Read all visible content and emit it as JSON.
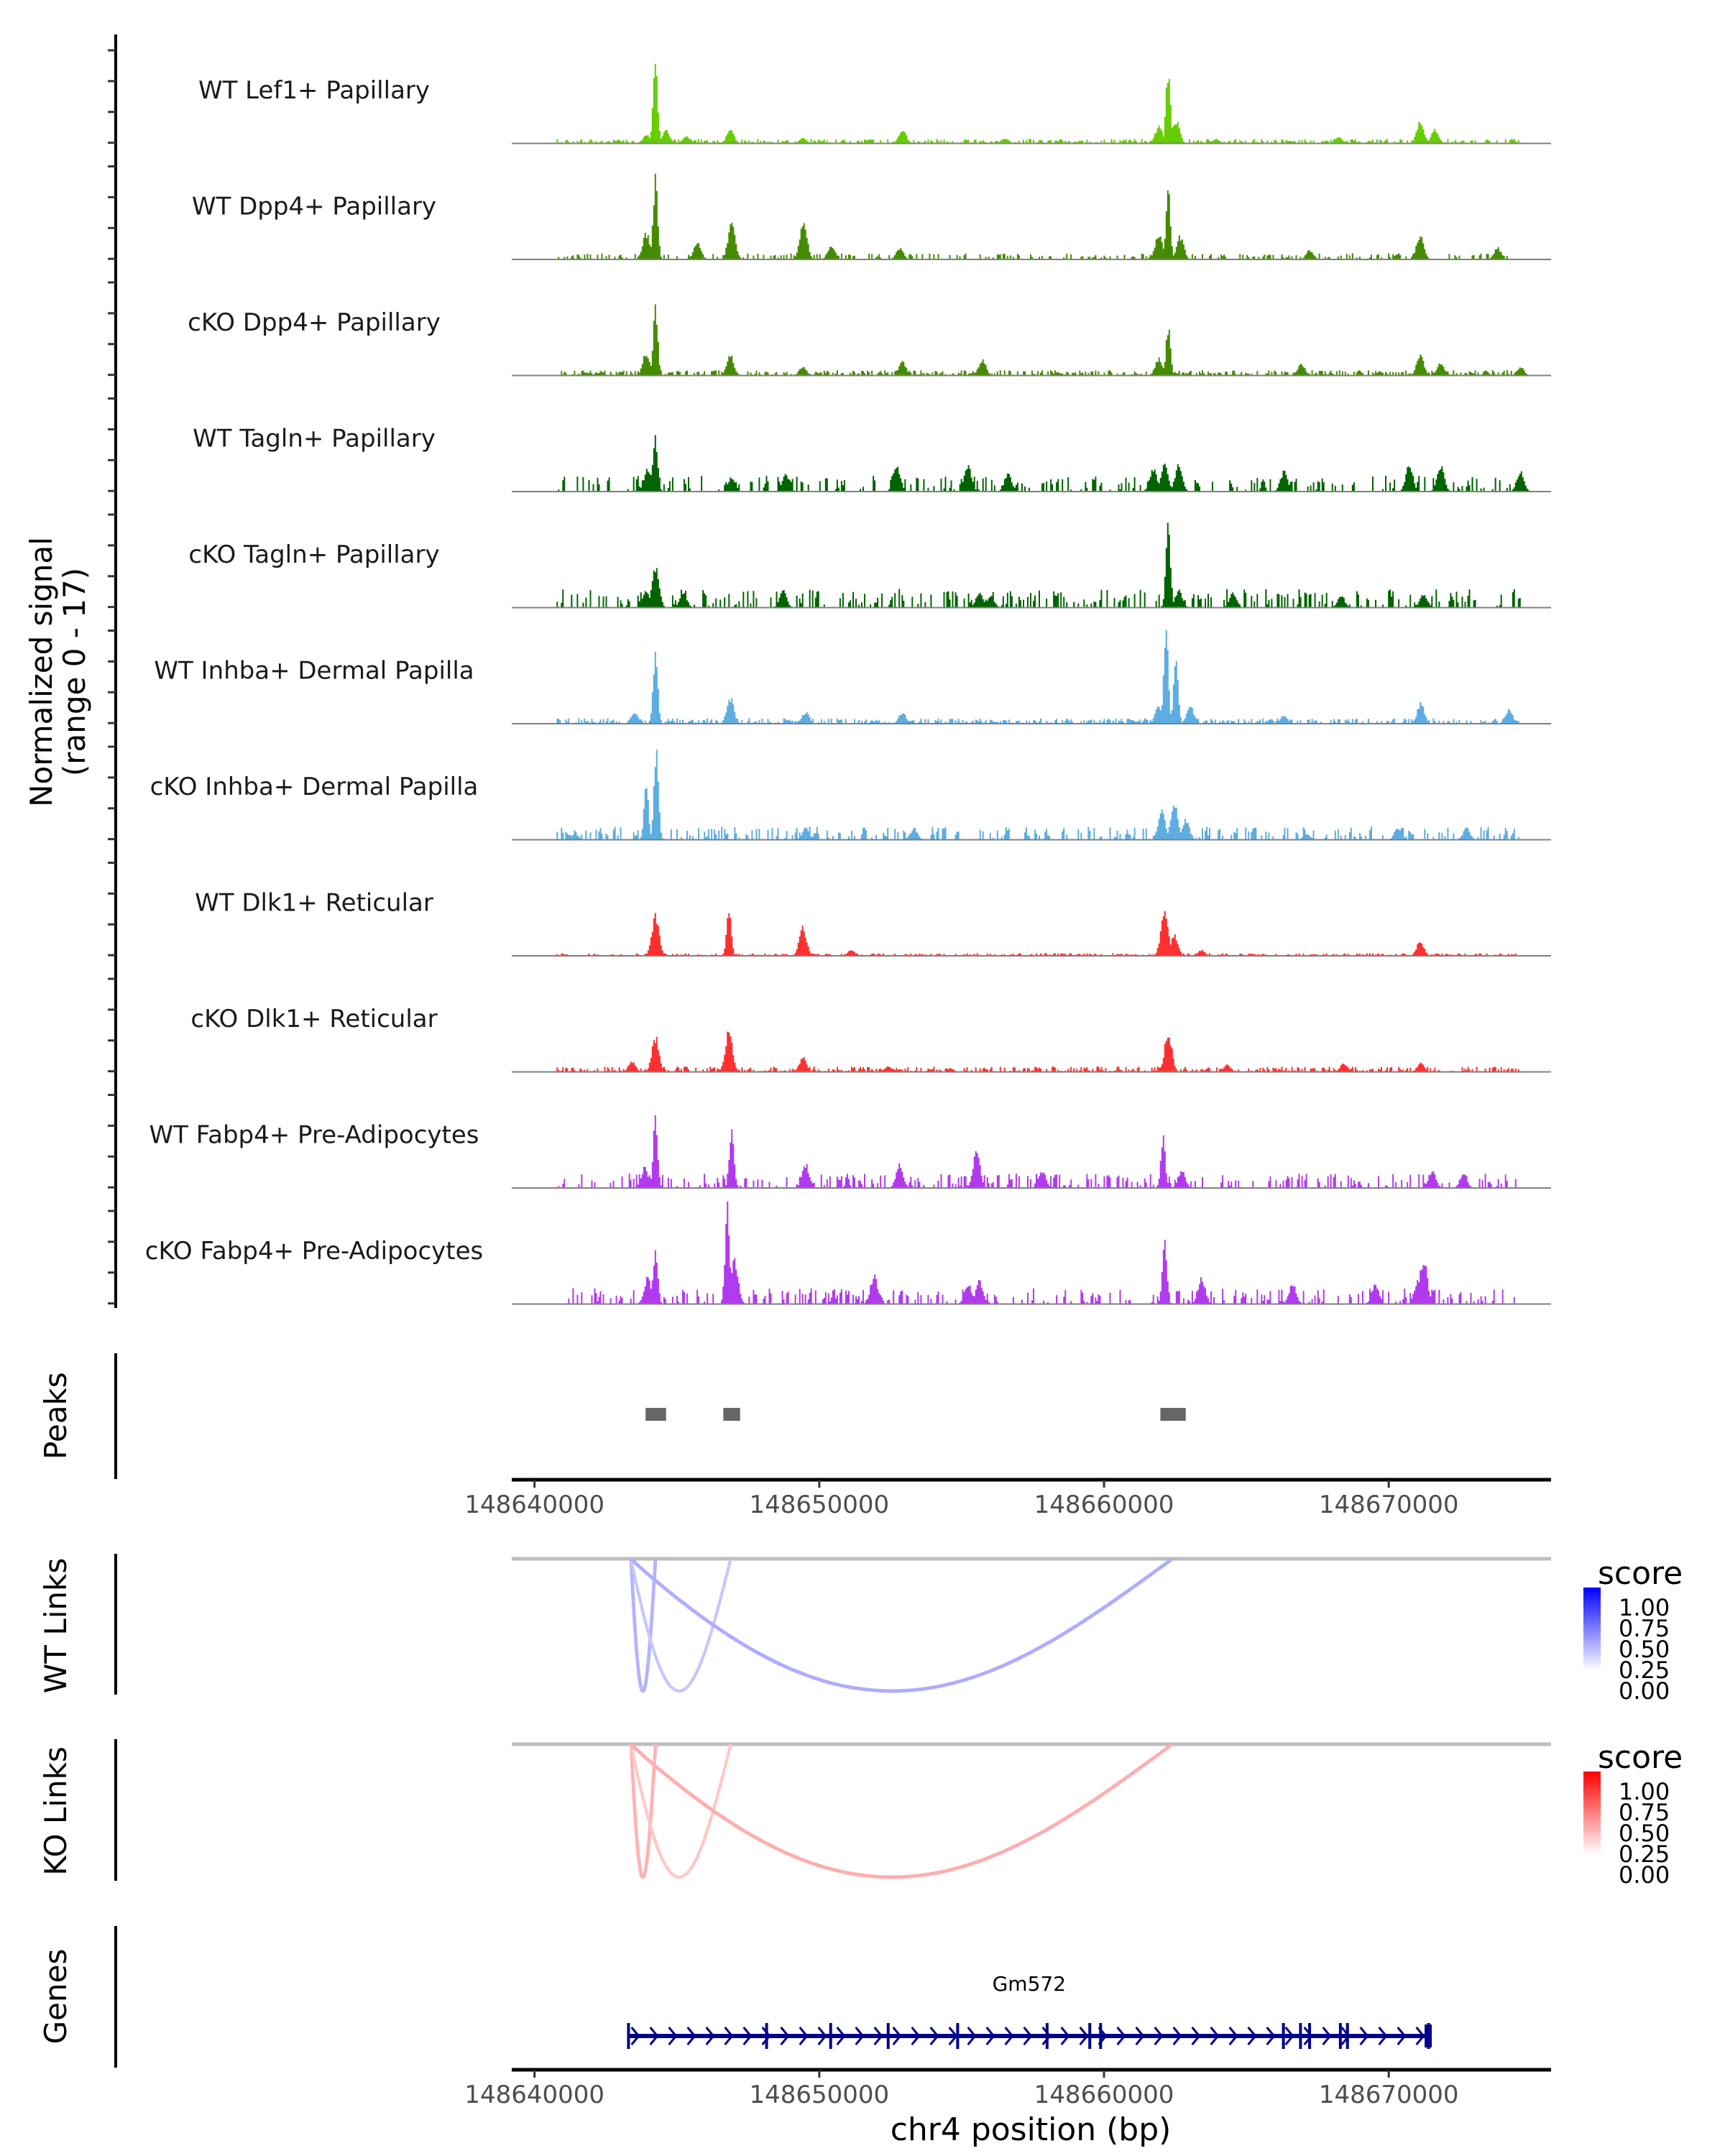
{
  "chart_data": {
    "type": "area",
    "title": "",
    "xlabel": "chr4 position (bp)",
    "ylabel": "Normalized signal\n(range 0 - 17)",
    "ylabel_lines": [
      "Normalized signal",
      "(range 0 - 17)"
    ],
    "chromosome": "chr4",
    "xlim": [
      148639200,
      148675700
    ],
    "ylim": [
      0,
      17
    ],
    "x_ticks": [
      148640000,
      148650000,
      148660000,
      148670000
    ],
    "x_tick_labels": [
      "148640000",
      "148650000",
      "148660000",
      "148670000"
    ],
    "coverage_tracks": [
      {
        "name": "WT Lef1+ Papillary",
        "color": "#66CD00",
        "peaks": [
          [
            148643900,
            1.5
          ],
          [
            148644220,
            14.5
          ],
          [
            148644600,
            2.2
          ],
          [
            148645300,
            1.2
          ],
          [
            148646850,
            2.5
          ],
          [
            148649400,
            0.9
          ],
          [
            148652900,
            2.4
          ],
          [
            148656500,
            0.9
          ],
          [
            148661900,
            3.0
          ],
          [
            148662230,
            12.5
          ],
          [
            148662500,
            4.0
          ],
          [
            148663900,
            0.8
          ],
          [
            148668200,
            1.2
          ],
          [
            148671080,
            3.8
          ],
          [
            148671600,
            2.4
          ]
        ],
        "noise": 0.5
      },
      {
        "name": "WT Dpp4+ Papillary",
        "color": "#458B00",
        "peaks": [
          [
            148643900,
            4.5
          ],
          [
            148644220,
            14.0
          ],
          [
            148645700,
            3.0
          ],
          [
            148646900,
            6.5
          ],
          [
            148649420,
            6.5
          ],
          [
            148650400,
            2.5
          ],
          [
            148652800,
            2.0
          ],
          [
            148661900,
            4.5
          ],
          [
            148662230,
            12.0
          ],
          [
            148662650,
            4.0
          ],
          [
            148667200,
            1.6
          ],
          [
            148671080,
            4.2
          ],
          [
            148673800,
            2.0
          ]
        ],
        "noise": 0.3,
        "sparse": true
      },
      {
        "name": "cKO Dpp4+ Papillary",
        "color": "#458B00",
        "peaks": [
          [
            148643900,
            4.0
          ],
          [
            148644220,
            12.0
          ],
          [
            148646850,
            3.5
          ],
          [
            148649400,
            1.5
          ],
          [
            148652900,
            2.3
          ],
          [
            148655700,
            2.8
          ],
          [
            148661900,
            3.0
          ],
          [
            148662230,
            8.5
          ],
          [
            148666900,
            2.0
          ],
          [
            148671080,
            3.8
          ],
          [
            148671800,
            2.2
          ],
          [
            148674600,
            1.5
          ]
        ],
        "noise": 0.6
      },
      {
        "name": "WT Tagln+ Papillary",
        "color": "#006400",
        "peaks": [
          [
            148643950,
            4.0
          ],
          [
            148644220,
            10.0
          ],
          [
            148646900,
            2.5
          ],
          [
            148648800,
            3.0
          ],
          [
            148652700,
            4.5
          ],
          [
            148655200,
            4.5
          ],
          [
            148656600,
            3.0
          ],
          [
            148661700,
            4.0
          ],
          [
            148662100,
            4.5
          ],
          [
            148662600,
            4.5
          ],
          [
            148666300,
            3.5
          ],
          [
            148670700,
            4.5
          ],
          [
            148671800,
            4.5
          ],
          [
            148674600,
            3.5
          ]
        ],
        "noise": 1.0,
        "sparse": true
      },
      {
        "name": "cKO Tagln+ Papillary",
        "color": "#006400",
        "peaks": [
          [
            148643900,
            3.0
          ],
          [
            148644220,
            7.0
          ],
          [
            148645200,
            2.5
          ],
          [
            148648700,
            3.0
          ],
          [
            148655600,
            2.5
          ],
          [
            148656000,
            2.0
          ],
          [
            148662230,
            14.5
          ],
          [
            148662600,
            3.0
          ],
          [
            148664500,
            2.5
          ],
          [
            148668300,
            2.0
          ],
          [
            148671200,
            2.5
          ]
        ],
        "noise": 1.2,
        "sparse": true
      },
      {
        "name": "WT Inhba+ Dermal Papilla",
        "color": "#5DADE2",
        "peaks": [
          [
            148643500,
            2.0
          ],
          [
            148644220,
            12.5
          ],
          [
            148646850,
            4.5
          ],
          [
            148649500,
            2.0
          ],
          [
            148652900,
            2.0
          ],
          [
            148661900,
            3.0
          ],
          [
            148662150,
            17.0
          ],
          [
            148662500,
            11.5
          ],
          [
            148663000,
            3.0
          ],
          [
            148666300,
            1.5
          ],
          [
            148671100,
            3.5
          ],
          [
            148674200,
            2.5
          ]
        ],
        "noise": 0.6
      },
      {
        "name": "cKO Inhba+ Dermal Papilla",
        "color": "#5DADE2",
        "peaks": [
          [
            148641400,
            1.0
          ],
          [
            148643900,
            9.0
          ],
          [
            148644250,
            16.0
          ],
          [
            148649500,
            2.0
          ],
          [
            148653300,
            2.0
          ],
          [
            148662000,
            5.0
          ],
          [
            148662450,
            6.0
          ],
          [
            148662850,
            3.5
          ],
          [
            148667100,
            1.0
          ],
          [
            148670300,
            2.0
          ],
          [
            148672700,
            2.0
          ]
        ],
        "noise": 0.8,
        "sparse": true
      },
      {
        "name": "WT Dlk1+ Reticular",
        "color": "#FF3030",
        "peaks": [
          [
            148644220,
            7.0
          ],
          [
            148646800,
            8.5
          ],
          [
            148649400,
            5.0
          ],
          [
            148651100,
            1.0
          ],
          [
            148662100,
            8.0
          ],
          [
            148662450,
            3.5
          ],
          [
            148663400,
            1.0
          ],
          [
            148671080,
            2.5
          ]
        ],
        "noise": 0.3
      },
      {
        "name": "cKO Dlk1+ Reticular",
        "color": "#FF3030",
        "peaks": [
          [
            148643400,
            1.8
          ],
          [
            148644220,
            6.0
          ],
          [
            148646800,
            7.0
          ],
          [
            148649400,
            2.5
          ],
          [
            148652400,
            1.0
          ],
          [
            148662230,
            7.0
          ],
          [
            148664300,
            1.2
          ],
          [
            148668400,
            1.5
          ],
          [
            148671100,
            1.5
          ]
        ],
        "noise": 0.6
      },
      {
        "name": "WT Fabp4+ Pre-Adipocytes",
        "color": "#B23AEE",
        "peaks": [
          [
            148643850,
            3.5
          ],
          [
            148644220,
            12.0
          ],
          [
            148646900,
            11.0
          ],
          [
            148649500,
            4.0
          ],
          [
            148652800,
            4.0
          ],
          [
            148655500,
            6.0
          ],
          [
            148657800,
            3.0
          ],
          [
            148662050,
            8.5
          ],
          [
            148662700,
            3.0
          ],
          [
            148671500,
            3.0
          ],
          [
            148672600,
            2.5
          ]
        ],
        "noise": 0.9,
        "sparse": true
      },
      {
        "name": "cKO Fabp4+ Pre-Adipocytes",
        "color": "#B23AEE",
        "peaks": [
          [
            148643950,
            4.5
          ],
          [
            148644220,
            10.0
          ],
          [
            148646750,
            17.0
          ],
          [
            148647000,
            8.0
          ],
          [
            148651900,
            5.0
          ],
          [
            148655200,
            3.5
          ],
          [
            148655600,
            4.0
          ],
          [
            148662100,
            10.5
          ],
          [
            148663400,
            4.5
          ],
          [
            148666600,
            3.5
          ],
          [
            148669500,
            3.5
          ],
          [
            148671200,
            8.0
          ],
          [
            148671000,
            4.0
          ]
        ],
        "noise": 1.0,
        "sparse": true
      }
    ],
    "peaks_track": {
      "label": "Peaks",
      "color": "#666666",
      "regions": [
        [
          148643900,
          148644620
        ],
        [
          148646630,
          148647220
        ],
        [
          148661980,
          148662870
        ]
      ]
    },
    "link_tracks": [
      {
        "label": "WT Links",
        "palette": "blue",
        "links": [
          {
            "start": 148643390,
            "end": 148644250,
            "score": 0.3
          },
          {
            "start": 148643390,
            "end": 148646890,
            "score": 0.22
          },
          {
            "start": 148643390,
            "end": 148662400,
            "score": 0.32
          }
        ]
      },
      {
        "label": "KO Links",
        "palette": "red",
        "links": [
          {
            "start": 148643390,
            "end": 148644250,
            "score": 0.3
          },
          {
            "start": 148643390,
            "end": 148646890,
            "score": 0.22
          },
          {
            "start": 148643390,
            "end": 148662400,
            "score": 0.32
          }
        ]
      }
    ],
    "legends": [
      {
        "title": "score",
        "low_color": "#FFFFFF",
        "high_color": "#0000FF",
        "ticks": [
          "1.00",
          "0.75",
          "0.50",
          "0.25",
          "0.00"
        ]
      },
      {
        "title": "score",
        "low_color": "#FFFFFF",
        "high_color": "#FF0000",
        "ticks": [
          "1.00",
          "0.75",
          "0.50",
          "0.25",
          "0.00"
        ]
      }
    ],
    "genes_track": {
      "label": "Genes",
      "color": "#00008B",
      "genes": [
        {
          "name": "Gm572",
          "start": 148643280,
          "end": 148671460,
          "strand": "+",
          "exons": [
            148643300,
            148648150,
            148650400,
            148652420,
            148654860,
            148658000,
            148659500,
            148659880,
            148666300,
            148666900,
            148667220,
            148668300,
            148668550,
            148671400
          ]
        }
      ]
    }
  }
}
